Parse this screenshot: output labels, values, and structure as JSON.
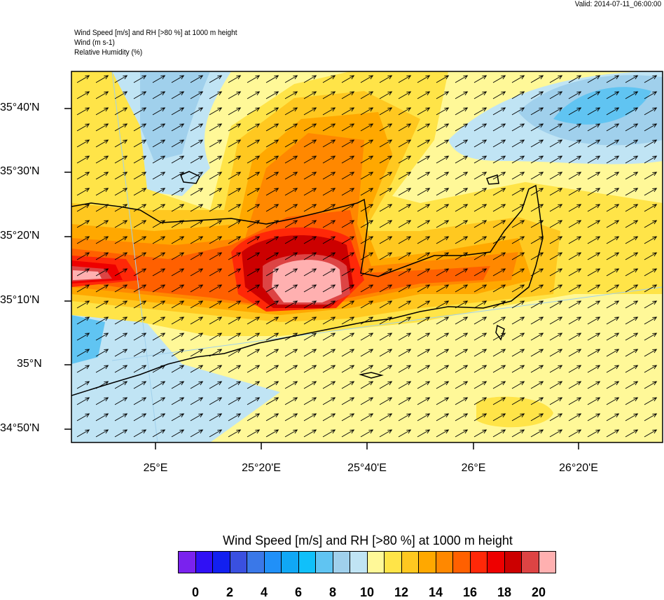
{
  "header": {
    "valid": "Valid: 2014-07-11_06:00:00",
    "lines": [
      "Wind Speed [m/s] and RH [>80 %] at 1000 m height",
      "Wind   (m s-1)",
      "Relative Humidity   (%)"
    ]
  },
  "map": {
    "lat_labels": [
      "35°40'N",
      "35°30'N",
      "35°20'N",
      "35°10'N",
      "35°N",
      "34°50'N"
    ],
    "lon_labels": [
      "25°E",
      "25°20'E",
      "25°40'E",
      "26°E",
      "26°20'E"
    ],
    "wind_direction_deg_from_east": 30
  },
  "colorbar": {
    "title": "Wind Speed [m/s] and RH [>80 %] at 1000 m height",
    "labels": [
      "0",
      "2",
      "4",
      "6",
      "8",
      "10",
      "12",
      "14",
      "16",
      "18",
      "20"
    ],
    "colors": [
      "#7a22ee",
      "#3010f5",
      "#1220f0",
      "#3a50e0",
      "#3a78e8",
      "#2090f8",
      "#10a8f5",
      "#10c0fa",
      "#60c4f2",
      "#a0d0ec",
      "#c0e4f4",
      "#fff898",
      "#ffe448",
      "#ffc820",
      "#ffa800",
      "#ff8800",
      "#ff6000",
      "#ff2808",
      "#ee0000",
      "#cc0000",
      "#dd4444",
      "#ffb0b0"
    ]
  }
}
